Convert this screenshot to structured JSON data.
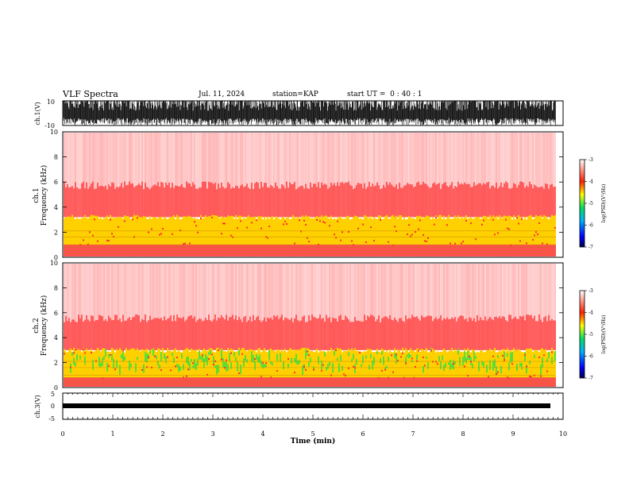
{
  "header": {
    "title": "VLF Spectra",
    "date": "Jul. 11, 2024",
    "station": "station=KAP",
    "start_ut": "start UT =  0 : 40 : 1"
  },
  "colors": {
    "spec_cold": "#ffffff",
    "spec_low": "#ff3030",
    "spec_mid": "#ffd000",
    "spec_high": "#40e040",
    "line": "#000000"
  },
  "chart_data": [
    {
      "type": "line",
      "id": "ch1-waveform",
      "ylabel": "ch.1(V)",
      "ylim": [
        -10,
        10
      ],
      "yticks": [
        "10",
        "-10"
      ],
      "description_values": "dense noise waveform, mostly between -10 and +10 V, saturating at the top frequently"
    },
    {
      "type": "heatmap",
      "id": "ch1-spectrogram",
      "ylabel": [
        "ch.1",
        "Frequency (kHz)"
      ],
      "ylim": [
        0,
        10
      ],
      "yticks": [
        "0",
        "2",
        "4",
        "6",
        "8",
        "10"
      ],
      "xlim": [
        0,
        10
      ],
      "data_extent_min": 9.85,
      "band_top_khz": 3.2,
      "band_bottom_khz": 1.0
    },
    {
      "type": "heatmap",
      "id": "ch2-spectrogram",
      "ylabel": [
        "ch.2",
        "Frequency (kHz)"
      ],
      "ylim": [
        0,
        10
      ],
      "yticks": [
        "0",
        "2",
        "4",
        "6",
        "8",
        "10"
      ],
      "xlim": [
        0,
        10
      ],
      "data_extent_min": 9.85,
      "band_top_khz": 3.0,
      "band_bottom_khz": 0.8
    },
    {
      "type": "line",
      "id": "ch3-waveform",
      "ylabel": "ch.3(V)",
      "ylim": [
        -5,
        5
      ],
      "yticks": [
        "5",
        "0",
        "-5"
      ],
      "level_v": 0,
      "xlabel": "Time (min)",
      "xlim": [
        0,
        10
      ],
      "xticks": [
        "0",
        "1",
        "2",
        "3",
        "4",
        "5",
        "6",
        "7",
        "8",
        "9",
        "10"
      ]
    }
  ],
  "colorbars": [
    {
      "id": "colorbar-ch1",
      "label": "log(PSD)(V²/Hz)",
      "ticks": [
        "-3",
        "-4",
        "-5",
        "-6",
        "-7"
      ],
      "range": [
        -7,
        -3
      ]
    },
    {
      "id": "colorbar-ch2",
      "label": "log(PSD)(V²/Hz)",
      "ticks": [
        "-3",
        "-4",
        "-5",
        "-6",
        "-7"
      ],
      "range": [
        -7,
        -3
      ]
    }
  ]
}
